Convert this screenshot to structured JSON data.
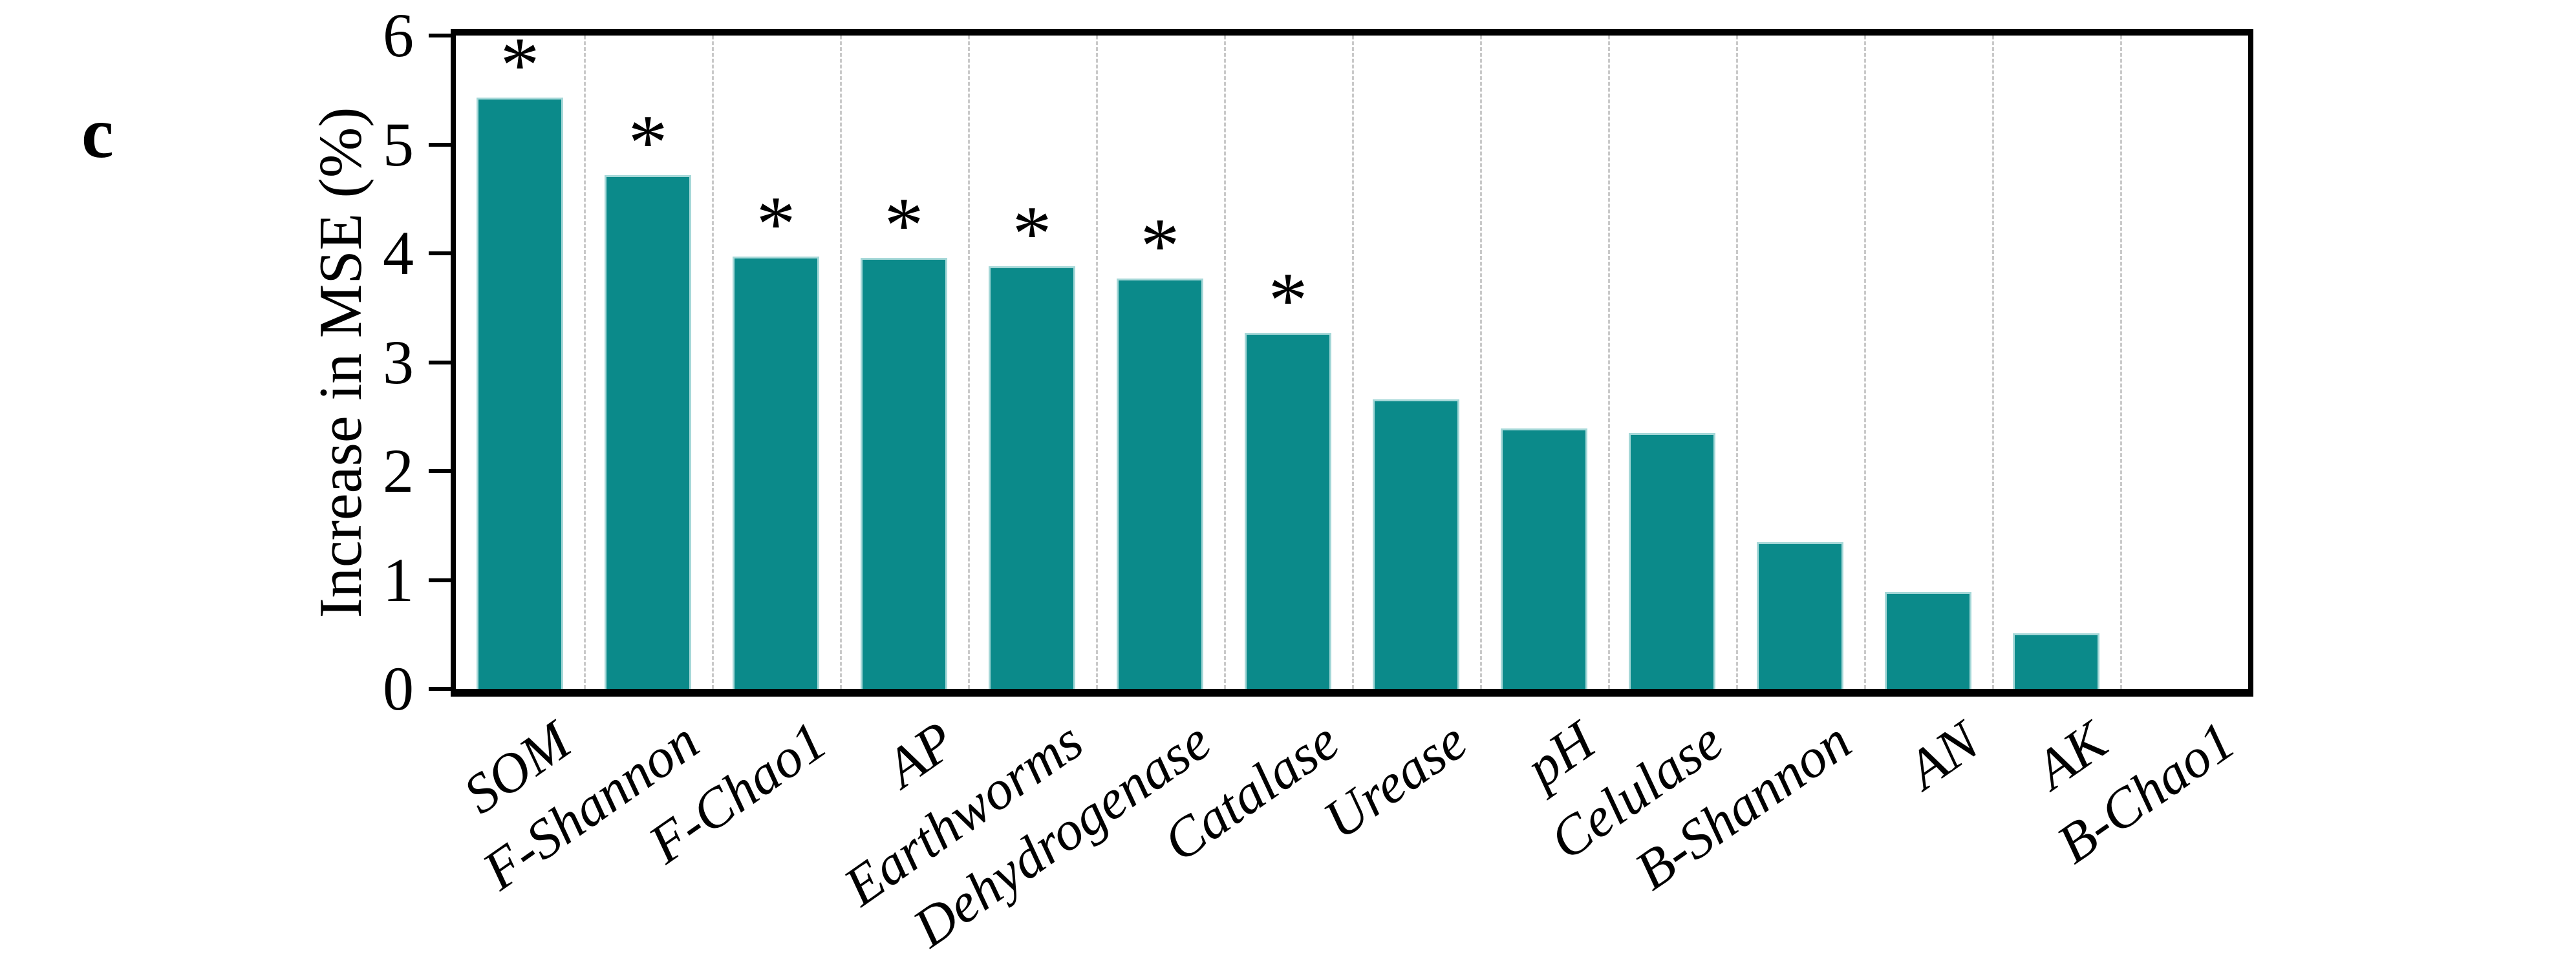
{
  "panel": {
    "label": "c"
  },
  "chart_data": {
    "type": "bar",
    "title": "",
    "xlabel": "",
    "ylabel": "Increase in MSE (%)",
    "categories": [
      "SOM",
      "F-Shannon",
      "F-Chao1",
      "AP",
      "Earthworms",
      "Dehydrogenase",
      "Catalase",
      "Urease",
      "pH",
      "Celulase",
      "B-Shannon",
      "AN",
      "AK",
      "B-Chao1"
    ],
    "values": [
      5.43,
      4.72,
      3.97,
      3.96,
      3.88,
      3.77,
      3.27,
      2.66,
      2.39,
      2.35,
      1.35,
      0.89,
      0.51,
      0
    ],
    "significant": [
      true,
      true,
      true,
      true,
      true,
      true,
      true,
      false,
      false,
      false,
      false,
      false,
      false,
      false
    ],
    "significance_marker": "*",
    "ylim": [
      0,
      6
    ],
    "yticks": [
      "0",
      "1",
      "2",
      "3",
      "4",
      "5",
      "6"
    ],
    "grid": "vertical dashed lines between categories",
    "legend_position": "none",
    "bar_color": "#0b8a8a",
    "bar_edge_color": "#a6d8d8",
    "gridline_color": "#c9c9c9",
    "axis_color": "#000000"
  }
}
